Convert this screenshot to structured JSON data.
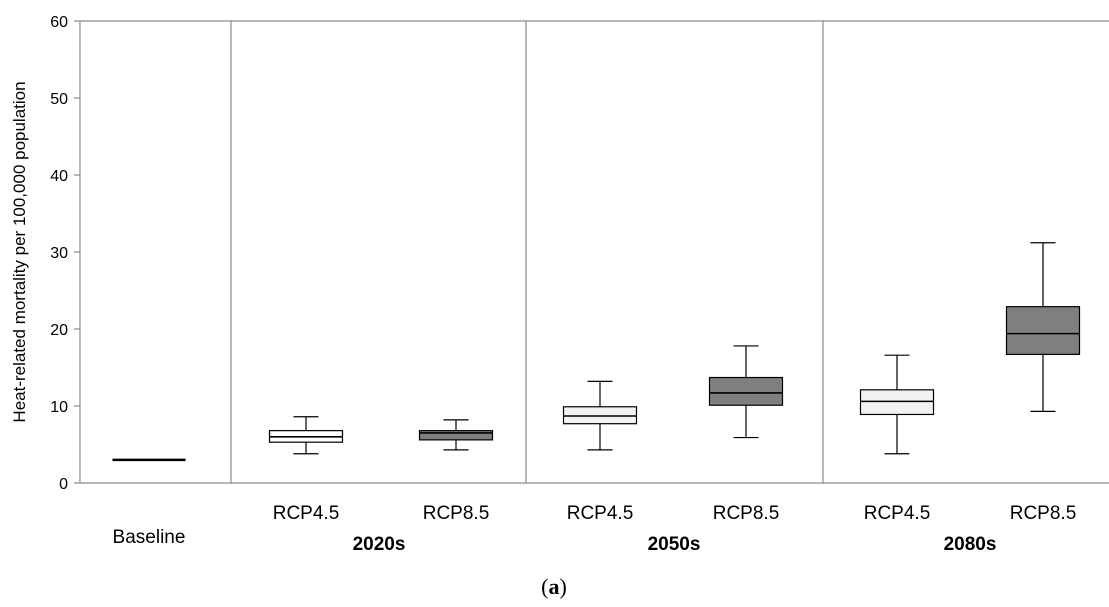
{
  "chart_data": {
    "type": "boxplot",
    "ylabel": "Heat-related mortality per 100,000 population",
    "ylim": [
      0,
      60
    ],
    "yticks": [
      0,
      10,
      20,
      30,
      40,
      50,
      60
    ],
    "groups": [
      "",
      "2020s",
      "2050s",
      "2080s"
    ],
    "panel_label": {
      "open": "(",
      "letter": "a",
      "close": ")"
    },
    "boxes": [
      {
        "group": "",
        "category": "Baseline",
        "min": 3.0,
        "q1": 3.0,
        "median": 3.0,
        "q3": 3.0,
        "max": 3.0,
        "color": "#000000"
      },
      {
        "group": "2020s",
        "category": "RCP4.5",
        "min": 3.8,
        "q1": 5.3,
        "median": 6.0,
        "q3": 6.8,
        "max": 8.6,
        "color": "#ffffff"
      },
      {
        "group": "2020s",
        "category": "RCP8.5",
        "min": 4.3,
        "q1": 5.6,
        "median": 6.5,
        "q3": 6.8,
        "max": 8.2,
        "color": "#7f7f7f"
      },
      {
        "group": "2050s",
        "category": "RCP4.5",
        "min": 4.3,
        "q1": 7.7,
        "median": 8.7,
        "q3": 9.9,
        "max": 13.2,
        "color": "#f2f2f2"
      },
      {
        "group": "2050s",
        "category": "RCP8.5",
        "min": 5.9,
        "q1": 10.1,
        "median": 11.7,
        "q3": 13.7,
        "max": 17.8,
        "color": "#7f7f7f"
      },
      {
        "group": "2080s",
        "category": "RCP4.5",
        "min": 3.8,
        "q1": 8.9,
        "median": 10.6,
        "q3": 12.1,
        "max": 16.6,
        "color": "#f2f2f2"
      },
      {
        "group": "2080s",
        "category": "RCP8.5",
        "min": 9.3,
        "q1": 16.7,
        "median": 19.4,
        "q3": 22.9,
        "max": 31.2,
        "color": "#7f7f7f"
      }
    ]
  }
}
